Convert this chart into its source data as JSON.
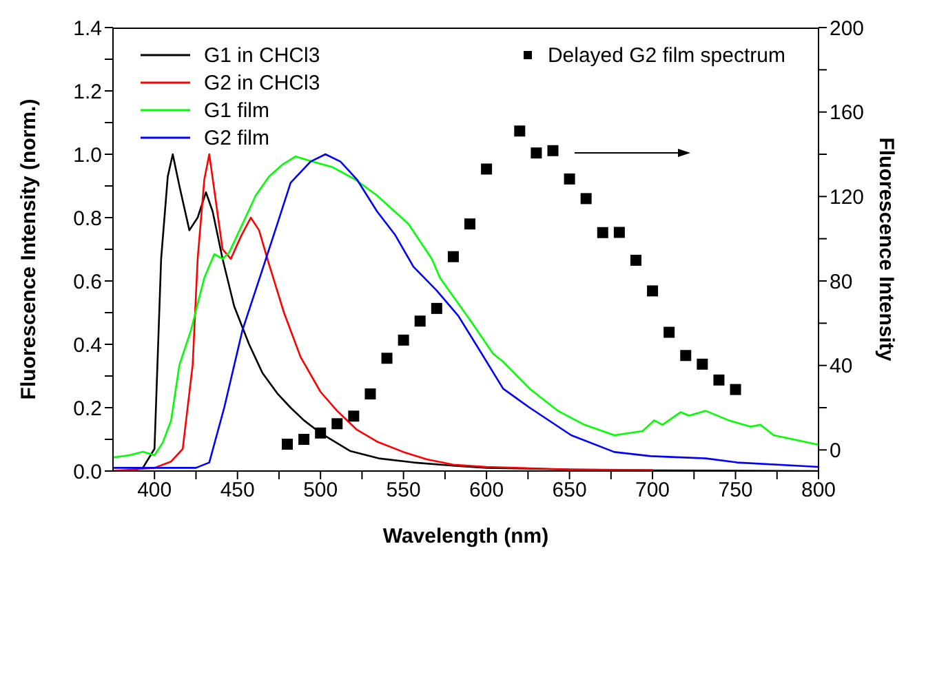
{
  "chart_data": {
    "type": "line",
    "xlabel": "Wavelength (nm)",
    "ylabel": "Fluorescence Intensity (norm.)",
    "y2label": "Fluorescence Intensity",
    "xlim": [
      375,
      800
    ],
    "xticks": [
      400,
      {
        "value": 425,
        "label": null
      },
      450,
      {
        "value": 475,
        "label": null
      },
      500,
      {
        "value": 525,
        "label": null
      },
      550,
      {
        "value": 575,
        "label": null
      },
      600,
      {
        "value": 625,
        "label": null
      },
      650,
      {
        "value": 675,
        "label": null
      },
      700,
      {
        "value": 725,
        "label": null
      },
      750,
      {
        "value": 775,
        "label": null
      },
      800
    ],
    "ylim": [
      0,
      1.4
    ],
    "yticks": [
      {
        "value": 0,
        "label": "0.0"
      },
      {
        "value": 0.1,
        "label": null
      },
      0.2,
      {
        "value": 0.3,
        "label": null
      },
      0.4,
      {
        "value": 0.5,
        "label": null
      },
      0.6,
      {
        "value": 0.7,
        "label": null
      },
      0.8,
      {
        "value": 0.9,
        "label": null
      },
      {
        "value": 1,
        "label": "1.0"
      },
      {
        "value": 1.1,
        "label": null
      },
      1.2,
      {
        "value": 1.3,
        "label": null
      },
      1.4
    ],
    "y2lim": [
      -10,
      200
    ],
    "y2ticks": [
      0,
      {
        "value": 20,
        "label": null
      },
      40,
      {
        "value": 60,
        "label": null
      },
      80,
      {
        "value": 100,
        "label": null
      },
      120,
      {
        "value": 140,
        "label": null
      },
      160,
      {
        "value": 180,
        "label": null
      },
      200
    ],
    "legend": "top",
    "marker": "none",
    "line_style": "solid",
    "series": [
      {
        "name": "G1 in CHCl3",
        "color": "#000000",
        "x": [
          375,
          385,
          393,
          400,
          404,
          408,
          411,
          415,
          421,
          426,
          431,
          435,
          441,
          448,
          457,
          465,
          474,
          482,
          490,
          500,
          518,
          535,
          556,
          580,
          600,
          650,
          700,
          800
        ],
        "values": [
          0.0,
          0.0,
          0.01,
          0.07,
          0.67,
          0.93,
          1.0,
          0.9,
          0.76,
          0.8,
          0.88,
          0.82,
          0.67,
          0.52,
          0.4,
          0.31,
          0.245,
          0.2,
          0.16,
          0.12,
          0.063,
          0.04,
          0.027,
          0.017,
          0.01,
          0.005,
          0.002,
          0.0
        ]
      },
      {
        "name": "G2 in CHCl3",
        "color": "#ff0000",
        "x": [
          375,
          400,
          410,
          417,
          423,
          426,
          430,
          433,
          437,
          441,
          446,
          452,
          458,
          463,
          468,
          478,
          488,
          500,
          510,
          522,
          534,
          550,
          564,
          580,
          600,
          650,
          700
        ],
        "values": [
          0.0,
          0.01,
          0.03,
          0.07,
          0.335,
          0.67,
          0.92,
          1.0,
          0.85,
          0.7,
          0.67,
          0.74,
          0.8,
          0.76,
          0.67,
          0.5,
          0.36,
          0.25,
          0.19,
          0.13,
          0.093,
          0.06,
          0.037,
          0.02,
          0.013,
          0.005,
          0.003
        ]
      },
      {
        "name": "G1 film",
        "color": "#00ff00",
        "x": [
          375,
          385,
          393,
          400,
          405,
          410,
          415,
          422,
          430,
          436,
          441,
          445,
          453,
          461,
          469,
          477,
          485,
          495,
          507,
          521,
          534,
          553,
          567,
          572,
          591,
          604,
          610,
          626,
          643,
          659,
          677,
          694,
          701,
          706,
          717,
          722,
          732,
          746,
          759,
          765,
          773,
          800
        ],
        "values": [
          0.043,
          0.05,
          0.061,
          0.05,
          0.09,
          0.16,
          0.335,
          0.445,
          0.61,
          0.685,
          0.67,
          0.69,
          0.78,
          0.87,
          0.93,
          0.967,
          0.993,
          0.977,
          0.96,
          0.92,
          0.87,
          0.78,
          0.67,
          0.61,
          0.47,
          0.37,
          0.345,
          0.26,
          0.19,
          0.146,
          0.113,
          0.126,
          0.16,
          0.146,
          0.186,
          0.175,
          0.19,
          0.16,
          0.14,
          0.146,
          0.113,
          0.083
        ]
      },
      {
        "name": "G2 film",
        "color": "#0000ff",
        "x": [
          375,
          400,
          425,
          433,
          442,
          453,
          464,
          474,
          482,
          494,
          503,
          512,
          522,
          534,
          545,
          556,
          570,
          583,
          596,
          610,
          626,
          651,
          677,
          699,
          732,
          751,
          800
        ],
        "values": [
          0.01,
          0.01,
          0.01,
          0.027,
          0.2,
          0.445,
          0.62,
          0.78,
          0.91,
          0.977,
          1.0,
          0.977,
          0.92,
          0.82,
          0.745,
          0.645,
          0.57,
          0.49,
          0.38,
          0.26,
          0.2,
          0.113,
          0.06,
          0.047,
          0.04,
          0.027,
          0.013
        ]
      },
      {
        "name": "Delayed G2 film spectrum",
        "type": "scatter",
        "axis": "y2",
        "marker": "square",
        "color": "#000000",
        "x": [
          480,
          490,
          500,
          510,
          520,
          530,
          540,
          550,
          560,
          570,
          580,
          590,
          600,
          620,
          630,
          640,
          650,
          660,
          670,
          680,
          690,
          700,
          710,
          720,
          730,
          740,
          750
        ],
        "values": [
          2.7,
          5,
          8,
          12.4,
          16,
          26.5,
          43.4,
          52,
          61,
          67,
          91.5,
          107,
          133,
          151,
          140.6,
          141.7,
          128.3,
          119,
          102.9,
          103,
          89.8,
          75.3,
          55.7,
          44.7,
          40.6,
          33.1,
          28.6
        ]
      }
    ]
  }
}
